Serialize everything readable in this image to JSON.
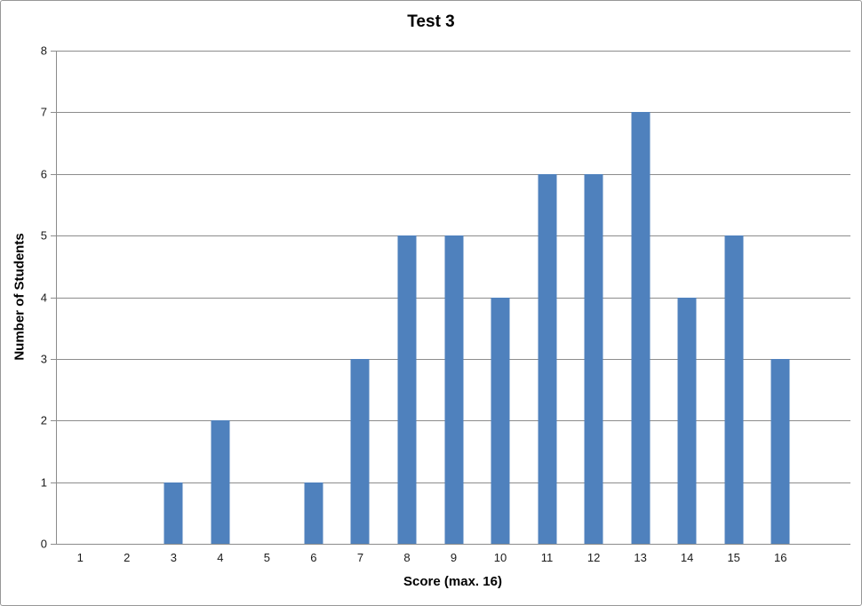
{
  "window": {
    "background_color": "#FFFFFF",
    "border_color": "#979797"
  },
  "chart_data": {
    "type": "bar",
    "title": "Test 3",
    "xlabel": "Score (max. 16)",
    "ylabel": "Number of Students",
    "categories": [
      "1",
      "2",
      "3",
      "4",
      "5",
      "6",
      "7",
      "8",
      "9",
      "10",
      "11",
      "12",
      "13",
      "14",
      "15",
      "16"
    ],
    "values": [
      0,
      0,
      1,
      2,
      0,
      1,
      3,
      5,
      5,
      4,
      6,
      6,
      7,
      4,
      5,
      3
    ],
    "ylim": [
      0,
      8
    ],
    "y_ticks": [
      0,
      1,
      2,
      3,
      4,
      5,
      6,
      7,
      8
    ],
    "trailing_empty_slots": 1,
    "grid": true,
    "legend": "none",
    "bar_color": "#4F81BD",
    "gridline_color": "#8C8C8C",
    "axis_color": "#8C8C8C",
    "text_color": "#000000"
  }
}
